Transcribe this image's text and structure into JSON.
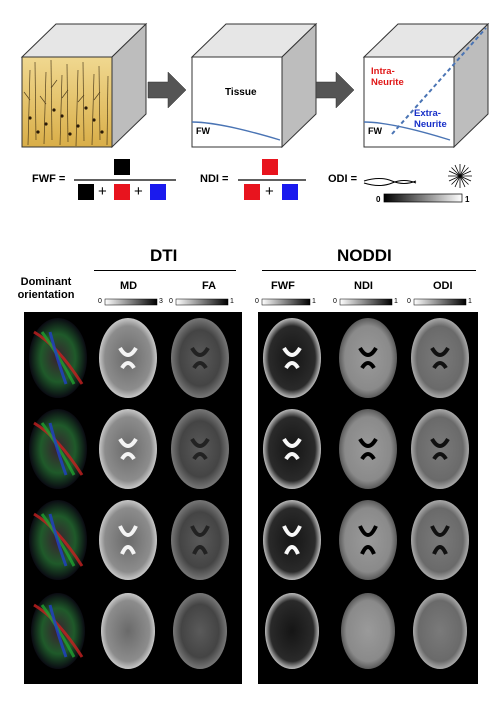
{
  "top": {
    "cube2_label": "Tissue",
    "fw_label": "FW",
    "cube3_fw_label": "FW",
    "intra_label_1": "Intra-",
    "intra_label_2": "Neurite",
    "extra_label_1": "Extra-",
    "extra_label_2": "Neurite",
    "colors": {
      "black": "#000000",
      "red": "#e8141e",
      "blue": "#1a1aee",
      "intra": "#e01818",
      "extra": "#1830c8",
      "cube_side": "#bfbfbf",
      "cube_top": "#e8e8e8",
      "histology": "#e8c86a"
    }
  },
  "formulas": {
    "fwf_label": "FWF =",
    "ndi_label": "NDI =",
    "odi_label": "ODI =",
    "plus": "+",
    "scale_min": "0",
    "scale_max": "1"
  },
  "panel": {
    "dti_title": "DTI",
    "noddi_title": "NODDI",
    "dominant_label_1": "Dominant",
    "dominant_label_2": "orientation",
    "columns": [
      {
        "name": "MD",
        "scale_min": "0",
        "scale_max": "3"
      },
      {
        "name": "FA",
        "scale_min": "0",
        "scale_max": "1"
      },
      {
        "name": "FWF",
        "scale_min": "0",
        "scale_max": "1"
      },
      {
        "name": "NDI",
        "scale_min": "0",
        "scale_max": "1"
      },
      {
        "name": "ODI",
        "scale_min": "0",
        "scale_max": "1"
      }
    ],
    "slice_rows": 4
  }
}
